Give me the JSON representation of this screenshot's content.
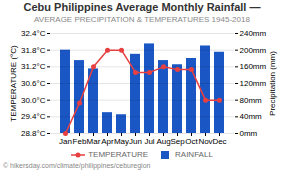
{
  "chart_data": {
    "type": "bar",
    "title": "Cebu Philippines Average Monthly Rainfall —",
    "subtitle": "AVERAGE PRECIPITATION & TEMPERATURES 1945-2018",
    "footer": "© hikersday.com/climate/philippines/ceburegion",
    "categories": [
      "Jan",
      "Feb",
      "Mar",
      "Apr",
      "May",
      "Jun",
      "Jul",
      "Aug",
      "Sep",
      "Oct",
      "Nov",
      "Dec"
    ],
    "series": [
      {
        "name": "TEMPERATURE",
        "type": "line",
        "marker": "circle",
        "color": "#e84040",
        "values": [
          28.8,
          29.9,
          31.2,
          31.8,
          31.8,
          31.0,
          31.0,
          31.2,
          31.1,
          31.1,
          30.0,
          30.0
        ]
      },
      {
        "name": "RAINFALL",
        "type": "bar",
        "axis": "y2",
        "color": "#1a56c4",
        "values": [
          200,
          175,
          155,
          50,
          45,
          190,
          215,
          175,
          165,
          180,
          210,
          195
        ]
      }
    ],
    "ylabel": "TEMPERATURE (°C)",
    "y2label": "Precipitation (mm)",
    "ylim": [
      28.8,
      32.4
    ],
    "yticks": [
      {
        "value": 28.8,
        "label": "28.8°C"
      },
      {
        "value": 29.4,
        "label": "29.4°C"
      },
      {
        "value": 30.0,
        "label": "30.0°C"
      },
      {
        "value": 30.6,
        "label": "30.6°C"
      },
      {
        "value": 31.2,
        "label": "31.2°C"
      },
      {
        "value": 31.8,
        "label": "31.8°C"
      },
      {
        "value": 32.4,
        "label": "32.4°C"
      }
    ],
    "y2lim": [
      0,
      240
    ],
    "y2ticks": [
      {
        "value": 0,
        "label": "0mm"
      },
      {
        "value": 40,
        "label": "40mm"
      },
      {
        "value": 80,
        "label": "80mm"
      },
      {
        "value": 120,
        "label": "120mm"
      },
      {
        "value": 160,
        "label": "160mm"
      },
      {
        "value": 200,
        "label": "200mm"
      },
      {
        "value": 240,
        "label": "240mm"
      }
    ],
    "grid": true,
    "legend": "bottom"
  }
}
